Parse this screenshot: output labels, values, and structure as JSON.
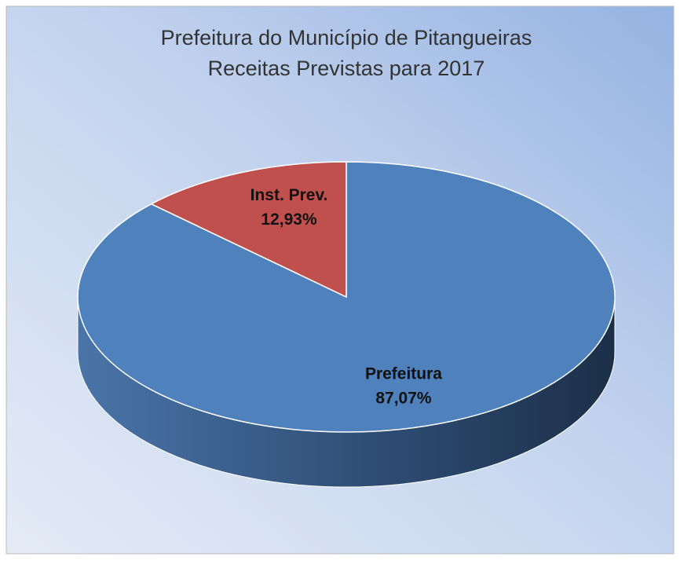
{
  "chart_data": {
    "type": "pie",
    "title": [
      "Prefeitura do Município de Pitangueiras",
      "Receitas Previstas para 2017"
    ],
    "categories": [
      "Prefeitura",
      "Inst. Prev."
    ],
    "values": [
      87.07,
      12.93
    ],
    "value_labels": [
      "87,07%",
      "12,93%"
    ],
    "colors": [
      "#4f81bd",
      "#c0504d"
    ],
    "side_colors": [
      "#3a6190",
      "#8f3a38"
    ]
  }
}
